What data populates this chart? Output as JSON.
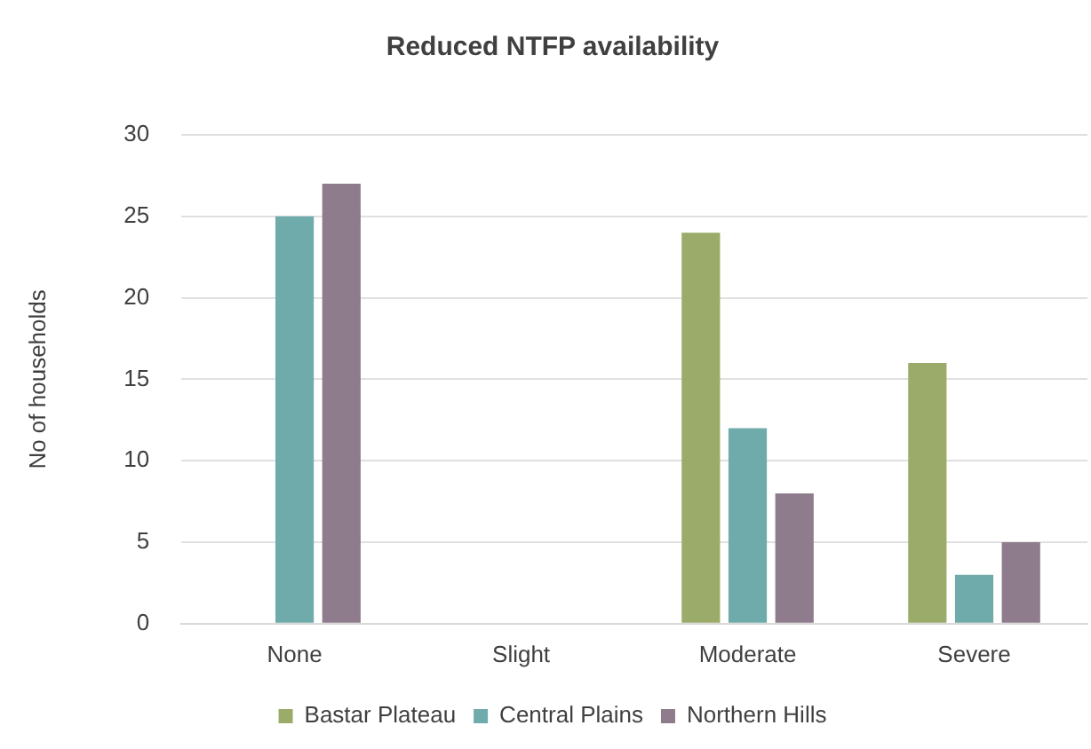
{
  "chart_data": {
    "type": "bar",
    "title": "Reduced NTFP availability",
    "ylabel": "No of households",
    "categories": [
      "None",
      "Slight",
      "Moderate",
      "Severe"
    ],
    "series": [
      {
        "name": "Bastar Plateau",
        "color": "#9bab6a",
        "values": [
          0,
          0,
          24,
          16
        ]
      },
      {
        "name": "Central Plains",
        "color": "#6fabaa",
        "values": [
          25,
          0,
          12,
          3
        ]
      },
      {
        "name": "Northern Hills",
        "color": "#8e7b8c",
        "values": [
          27,
          0,
          8,
          5
        ]
      }
    ],
    "ylim": [
      0,
      30
    ],
    "yticks": [
      0,
      5,
      10,
      15,
      20,
      25,
      30
    ],
    "grid": "y",
    "legend": "bottom"
  }
}
